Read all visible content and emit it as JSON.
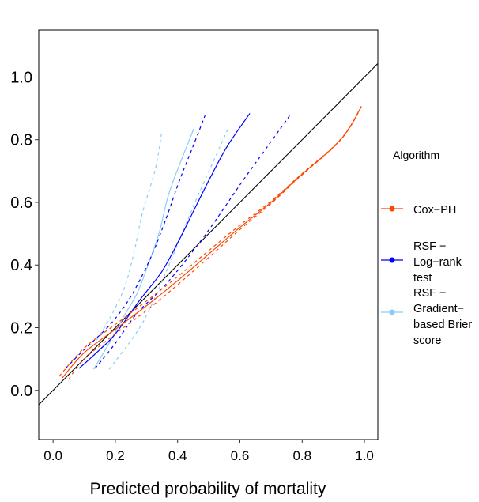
{
  "chart_data": {
    "type": "line",
    "title": "",
    "xlabel": "Predicted probability of mortality",
    "ylabel": "",
    "xlim": [
      -0.046,
      1.043
    ],
    "ylim": [
      -0.157,
      1.15
    ],
    "xticks": [
      "0.0",
      "0.2",
      "0.4",
      "0.6",
      "0.8",
      "1.0"
    ],
    "yticks": [
      "0.0",
      "0.2",
      "0.4",
      "0.6",
      "0.8",
      "1.0"
    ],
    "grid": false,
    "reference_line": {
      "slope": 1,
      "intercept": 0,
      "color": "#000000"
    },
    "legend": {
      "title": "Algorithm",
      "placement": "right"
    },
    "series": [
      {
        "name": "Cox−PH",
        "legend_lines": [
          "Cox−PH"
        ],
        "color": "#FF4500",
        "estimate": [
          [
            0.03,
            0.04
          ],
          [
            0.1,
            0.12
          ],
          [
            0.2,
            0.195
          ],
          [
            0.3,
            0.27
          ],
          [
            0.4,
            0.35
          ],
          [
            0.5,
            0.435
          ],
          [
            0.6,
            0.52
          ],
          [
            0.7,
            0.6
          ],
          [
            0.8,
            0.69
          ],
          [
            0.9,
            0.776
          ],
          [
            0.95,
            0.835
          ],
          [
            0.99,
            0.906
          ]
        ],
        "lower": [
          [
            0.05,
            0.035
          ],
          [
            0.1,
            0.1
          ],
          [
            0.2,
            0.18
          ],
          [
            0.3,
            0.255
          ],
          [
            0.4,
            0.337
          ],
          [
            0.5,
            0.424
          ],
          [
            0.6,
            0.513
          ],
          [
            0.7,
            0.596
          ],
          [
            0.8,
            0.688
          ],
          [
            0.9,
            0.775
          ],
          [
            0.95,
            0.834
          ],
          [
            0.99,
            0.905
          ]
        ],
        "upper": [
          [
            0.02,
            0.045
          ],
          [
            0.1,
            0.135
          ],
          [
            0.2,
            0.21
          ],
          [
            0.3,
            0.285
          ],
          [
            0.4,
            0.363
          ],
          [
            0.5,
            0.446
          ],
          [
            0.6,
            0.527
          ],
          [
            0.7,
            0.604
          ],
          [
            0.8,
            0.692
          ],
          [
            0.9,
            0.777
          ],
          [
            0.95,
            0.836
          ],
          [
            0.99,
            0.907
          ]
        ]
      },
      {
        "name": "RSF − Log−rank test",
        "legend_lines": [
          "RSF −",
          "Log−rank",
          "test"
        ],
        "color": "#0000FF",
        "estimate": [
          [
            0.084,
            0.07
          ],
          [
            0.15,
            0.13
          ],
          [
            0.2,
            0.18
          ],
          [
            0.28,
            0.29
          ],
          [
            0.35,
            0.38
          ],
          [
            0.405,
            0.48
          ],
          [
            0.45,
            0.57
          ],
          [
            0.507,
            0.683
          ],
          [
            0.56,
            0.78
          ],
          [
            0.632,
            0.884
          ]
        ],
        "lower": [
          [
            0.135,
            0.07
          ],
          [
            0.2,
            0.15
          ],
          [
            0.27,
            0.246
          ],
          [
            0.37,
            0.347
          ],
          [
            0.49,
            0.498
          ],
          [
            0.608,
            0.667
          ],
          [
            0.69,
            0.78
          ],
          [
            0.765,
            0.884
          ]
        ],
        "upper": [
          [
            0.04,
            0.07
          ],
          [
            0.1,
            0.13
          ],
          [
            0.185,
            0.212
          ],
          [
            0.25,
            0.3
          ],
          [
            0.312,
            0.42
          ],
          [
            0.36,
            0.54
          ],
          [
            0.405,
            0.667
          ],
          [
            0.45,
            0.78
          ],
          [
            0.488,
            0.877
          ]
        ]
      },
      {
        "name": "RSF − Gradient−based Brier score",
        "legend_lines": [
          "RSF −",
          "Gradient−",
          "based Brier",
          "score"
        ],
        "color": "#87CEFA",
        "estimate": [
          [
            0.13,
            0.067
          ],
          [
            0.18,
            0.15
          ],
          [
            0.228,
            0.237
          ],
          [
            0.27,
            0.31
          ],
          [
            0.304,
            0.397
          ],
          [
            0.34,
            0.5
          ],
          [
            0.371,
            0.625
          ],
          [
            0.41,
            0.73
          ],
          [
            0.452,
            0.835
          ]
        ],
        "lower": [
          [
            0.18,
            0.067
          ],
          [
            0.27,
            0.187
          ],
          [
            0.32,
            0.28
          ],
          [
            0.371,
            0.397
          ],
          [
            0.456,
            0.6
          ],
          [
            0.51,
            0.72
          ],
          [
            0.562,
            0.835
          ]
        ],
        "upper": [
          [
            0.14,
            0.16
          ],
          [
            0.185,
            0.235
          ],
          [
            0.23,
            0.33
          ],
          [
            0.26,
            0.44
          ],
          [
            0.287,
            0.566
          ],
          [
            0.329,
            0.709
          ],
          [
            0.35,
            0.831
          ]
        ]
      }
    ]
  }
}
